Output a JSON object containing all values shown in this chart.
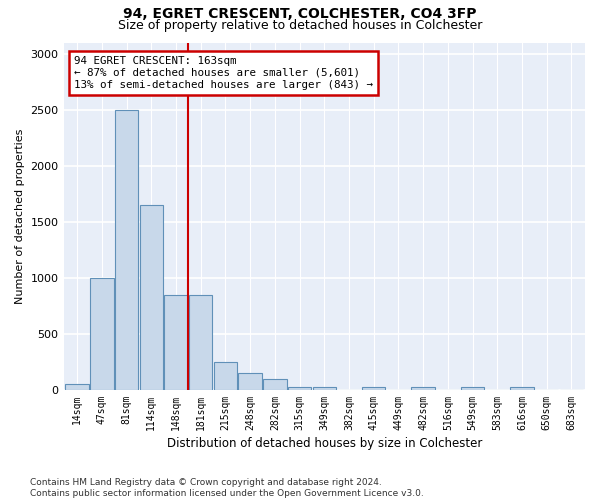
{
  "title1": "94, EGRET CRESCENT, COLCHESTER, CO4 3FP",
  "title2": "Size of property relative to detached houses in Colchester",
  "xlabel": "Distribution of detached houses by size in Colchester",
  "ylabel": "Number of detached properties",
  "categories": [
    "14sqm",
    "47sqm",
    "81sqm",
    "114sqm",
    "148sqm",
    "181sqm",
    "215sqm",
    "248sqm",
    "282sqm",
    "315sqm",
    "349sqm",
    "382sqm",
    "415sqm",
    "449sqm",
    "482sqm",
    "516sqm",
    "549sqm",
    "583sqm",
    "616sqm",
    "650sqm",
    "683sqm"
  ],
  "values": [
    50,
    1000,
    2500,
    1650,
    850,
    850,
    250,
    150,
    100,
    30,
    30,
    0,
    30,
    0,
    30,
    0,
    30,
    0,
    30,
    0,
    0
  ],
  "bar_color": "#c8d8ea",
  "bar_edge_color": "#6090b8",
  "background_color": "#e8eef8",
  "vline_x": 4.5,
  "vline_color": "#cc0000",
  "annotation_text": "94 EGRET CRESCENT: 163sqm\n← 87% of detached houses are smaller (5,601)\n13% of semi-detached houses are larger (843) →",
  "annotation_box_color": "#cc0000",
  "ylim": [
    0,
    3100
  ],
  "yticks": [
    0,
    500,
    1000,
    1500,
    2000,
    2500,
    3000
  ],
  "footnote": "Contains HM Land Registry data © Crown copyright and database right 2024.\nContains public sector information licensed under the Open Government Licence v3.0."
}
